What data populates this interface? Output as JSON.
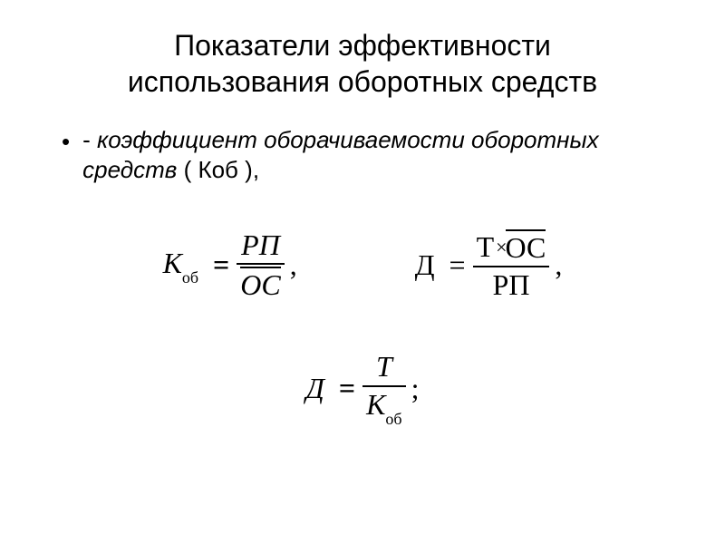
{
  "title_line1": "Показатели эффективности",
  "title_line2": "использования оборотных средств",
  "bullet": {
    "dash": "-",
    "italic_part": "коэффициент оборачиваемости оборотных средств",
    "tail": " ( Коб ),"
  },
  "symbols": {
    "K": "К",
    "ob": "об",
    "D": "Д",
    "T": "Т",
    "RP": "РП",
    "OC": "ОС",
    "times": "×"
  },
  "punct": {
    "comma": ",",
    "semicolon": ";"
  },
  "formula1": {
    "lhs": "K_ob",
    "numerator": "РП",
    "denominator_overline": "ОС"
  },
  "formula2": {
    "lhs": "Д",
    "numerator": "Т × OC_overline",
    "denominator": "РП"
  },
  "formula3": {
    "lhs": "Д",
    "numerator": "Т",
    "denominator": "K_ob"
  },
  "style": {
    "title_fontsize": 32,
    "bullet_fontsize": 26,
    "formula_fontsize": 32,
    "sub_fontsize": 18,
    "text_color": "#000000",
    "background": "#ffffff",
    "bar_thickness": 2,
    "font_title": "Arial",
    "font_formula": "Times New Roman"
  }
}
